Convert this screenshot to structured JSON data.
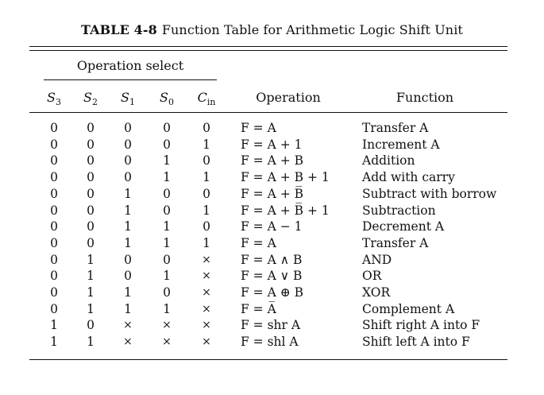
{
  "caption": {
    "label": "TABLE 4-8",
    "text": "Function Table for Arithmetic Logic Shift Unit"
  },
  "group_header": "Operation select",
  "columns": {
    "s3": "S",
    "s3_sub": "3",
    "s2": "S",
    "s2_sub": "2",
    "s1": "S",
    "s1_sub": "1",
    "s0": "S",
    "s0_sub": "0",
    "cin": "C",
    "cin_sub": "in",
    "operation": "Operation",
    "function": "Function"
  },
  "rows": [
    {
      "s3": "0",
      "s2": "0",
      "s1": "0",
      "s0": "0",
      "cin": "0",
      "op": "F = A",
      "fn": "Transfer A"
    },
    {
      "s3": "0",
      "s2": "0",
      "s1": "0",
      "s0": "0",
      "cin": "1",
      "op": "F = A + 1",
      "fn": "Increment A"
    },
    {
      "s3": "0",
      "s2": "0",
      "s1": "0",
      "s0": "1",
      "cin": "0",
      "op": "F = A + B",
      "fn": "Addition"
    },
    {
      "s3": "0",
      "s2": "0",
      "s1": "0",
      "s0": "1",
      "cin": "1",
      "op": "F = A + B + 1",
      "fn": "Add with carry"
    },
    {
      "s3": "0",
      "s2": "0",
      "s1": "1",
      "s0": "0",
      "cin": "0",
      "op": "F = A + B̅",
      "fn": "Subtract with borrow"
    },
    {
      "s3": "0",
      "s2": "0",
      "s1": "1",
      "s0": "0",
      "cin": "1",
      "op": "F = A + B̅ + 1",
      "fn": "Subtraction"
    },
    {
      "s3": "0",
      "s2": "0",
      "s1": "1",
      "s0": "1",
      "cin": "0",
      "op": "F = A − 1",
      "fn": "Decrement A"
    },
    {
      "s3": "0",
      "s2": "0",
      "s1": "1",
      "s0": "1",
      "cin": "1",
      "op": "F = A",
      "fn": "Transfer A"
    },
    {
      "s3": "0",
      "s2": "1",
      "s1": "0",
      "s0": "0",
      "cin": "×",
      "op": "F = A ∧ B",
      "fn": "AND"
    },
    {
      "s3": "0",
      "s2": "1",
      "s1": "0",
      "s0": "1",
      "cin": "×",
      "op": "F = A ∨ B",
      "fn": "OR"
    },
    {
      "s3": "0",
      "s2": "1",
      "s1": "1",
      "s0": "0",
      "cin": "×",
      "op": "F = A ⊕ B",
      "fn": "XOR"
    },
    {
      "s3": "0",
      "s2": "1",
      "s1": "1",
      "s0": "1",
      "cin": "×",
      "op": "F = A̅",
      "fn": "Complement A"
    },
    {
      "s3": "1",
      "s2": "0",
      "s1": "×",
      "s0": "×",
      "cin": "×",
      "op": "F = shr A",
      "fn": "Shift right A into F"
    },
    {
      "s3": "1",
      "s2": "1",
      "s1": "×",
      "s0": "×",
      "cin": "×",
      "op": "F = shl A",
      "fn": "Shift left A into F"
    }
  ]
}
